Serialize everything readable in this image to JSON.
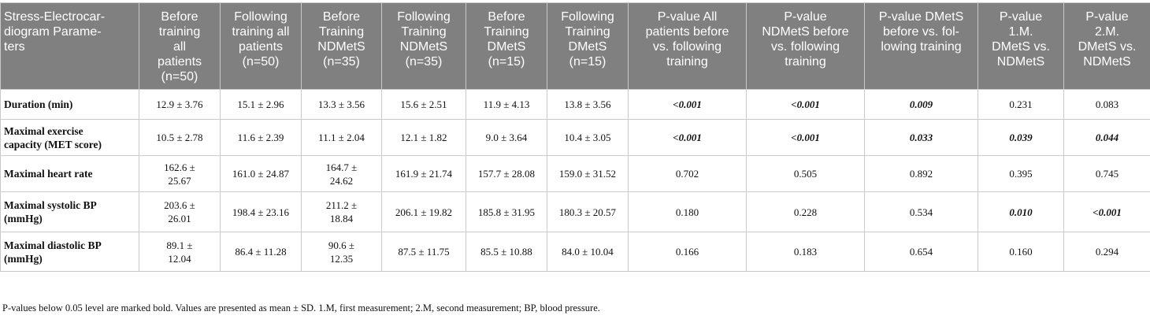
{
  "table": {
    "headers": [
      "Stress-Electrocar-\ndiogram Parame-\nters",
      "Before\ntraining\nall\npatients\n(n=50)",
      "Following\ntraining all\npatients\n(n=50)",
      "Before\nTraining\nNDMetS\n(n=35)",
      "Following\nTraining\nNDMetS\n(n=35)",
      "Before\nTraining\nDMetS\n(n=15)",
      "Following\nTraining\nDMetS\n(n=15)",
      "P-value All\npatients before\nvs. following\ntraining",
      "P-value\nNDMetS before\nvs. following\ntraining",
      "P-value DMetS\nbefore vs. fol-\nlowing training",
      "P-value\n1.M.\nDMetS vs.\nNDMetS",
      "P-value\n2.M.\nDMetS vs.\nNDMetS"
    ],
    "rows": [
      {
        "param": "Duration (min)",
        "values": [
          "12.9 ± 3.76",
          "15.1 ± 2.96",
          "13.3 ± 3.56",
          "15.6 ± 2.51",
          "11.9 ± 4.13",
          "13.8 ± 3.56",
          "<0.001",
          "<0.001",
          "0.009",
          "0.231",
          "0.083"
        ]
      },
      {
        "param": "Maximal exercise\ncapacity (MET score)",
        "values": [
          "10.5 ± 2.78",
          "11.6 ± 2.39",
          "11.1 ± 2.04",
          "12.1 ± 1.82",
          "9.0 ± 3.64",
          "10.4 ± 3.05",
          "<0.001",
          "<0.001",
          "0.033",
          "0.039",
          "0.044"
        ]
      },
      {
        "param": "Maximal heart rate",
        "values": [
          "162.6 ±\n25.67",
          "161.0 ± 24.87",
          "164.7 ±\n24.62",
          "161.9 ± 21.74",
          "157.7 ± 28.08",
          "159.0 ± 31.52",
          "0.702",
          "0.505",
          "0.892",
          "0.395",
          "0.745"
        ]
      },
      {
        "param": "Maximal systolic BP\n(mmHg)",
        "values": [
          "203.6 ±\n26.01",
          "198.4 ± 23.16",
          "211.2 ±\n18.84",
          "206.1 ± 19.82",
          "185.8 ± 31.95",
          "180.3 ± 20.57",
          "0.180",
          "0.228",
          "0.534",
          "0.010",
          "<0.001"
        ]
      },
      {
        "param": "Maximal diastolic BP\n(mmHg)",
        "values": [
          "89.1 ±\n12.04",
          "86.4 ± 11.28",
          "90.6 ±\n12.35",
          "87.5 ± 11.75",
          "85.5 ± 10.88",
          "84.0 ± 10.04",
          "0.166",
          "0.183",
          "0.654",
          "0.160",
          "0.294"
        ]
      }
    ]
  },
  "footnote": "P-values below 0.05 level are marked bold. Values are presented as mean ± SD. 1.M, first measurement; 2.M, second measurement; BP, blood pressure."
}
